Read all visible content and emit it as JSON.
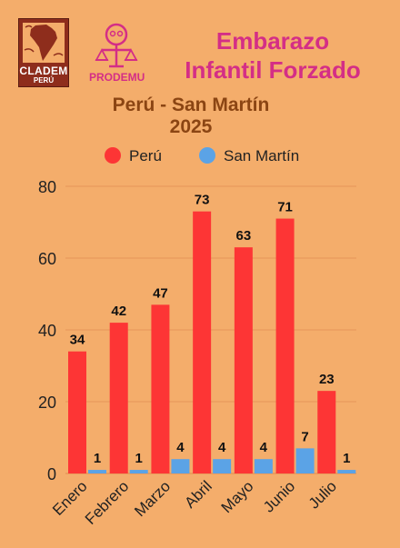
{
  "header": {
    "logo_left_text": "CLADEM",
    "logo_left_sub": "PERÚ",
    "logo_right_text": "PRODEMU",
    "title_line1": "Embarazo",
    "title_line2": "Infantil Forzado"
  },
  "colors": {
    "background": "#f4ad6b",
    "peru": "#fd3535",
    "san_martin": "#5ba3e6",
    "title": "#d42e86",
    "subtitle": "#8b4513"
  },
  "chart_data": {
    "type": "bar",
    "title": "Perú - San Martín",
    "subtitle": "2025",
    "categories": [
      "Enero",
      "Febrero",
      "Marzo",
      "Abril",
      "Mayo",
      "Junio",
      "Julio"
    ],
    "series": [
      {
        "name": "Perú",
        "values": [
          34,
          42,
          47,
          73,
          63,
          71,
          23
        ],
        "color": "#fd3535"
      },
      {
        "name": "San Martín",
        "values": [
          1,
          1,
          4,
          4,
          4,
          7,
          1
        ],
        "color": "#5ba3e6"
      }
    ],
    "ylim": [
      0,
      80
    ],
    "yticks": [
      0,
      20,
      40,
      60,
      80
    ],
    "grid": true,
    "legend": "top"
  }
}
